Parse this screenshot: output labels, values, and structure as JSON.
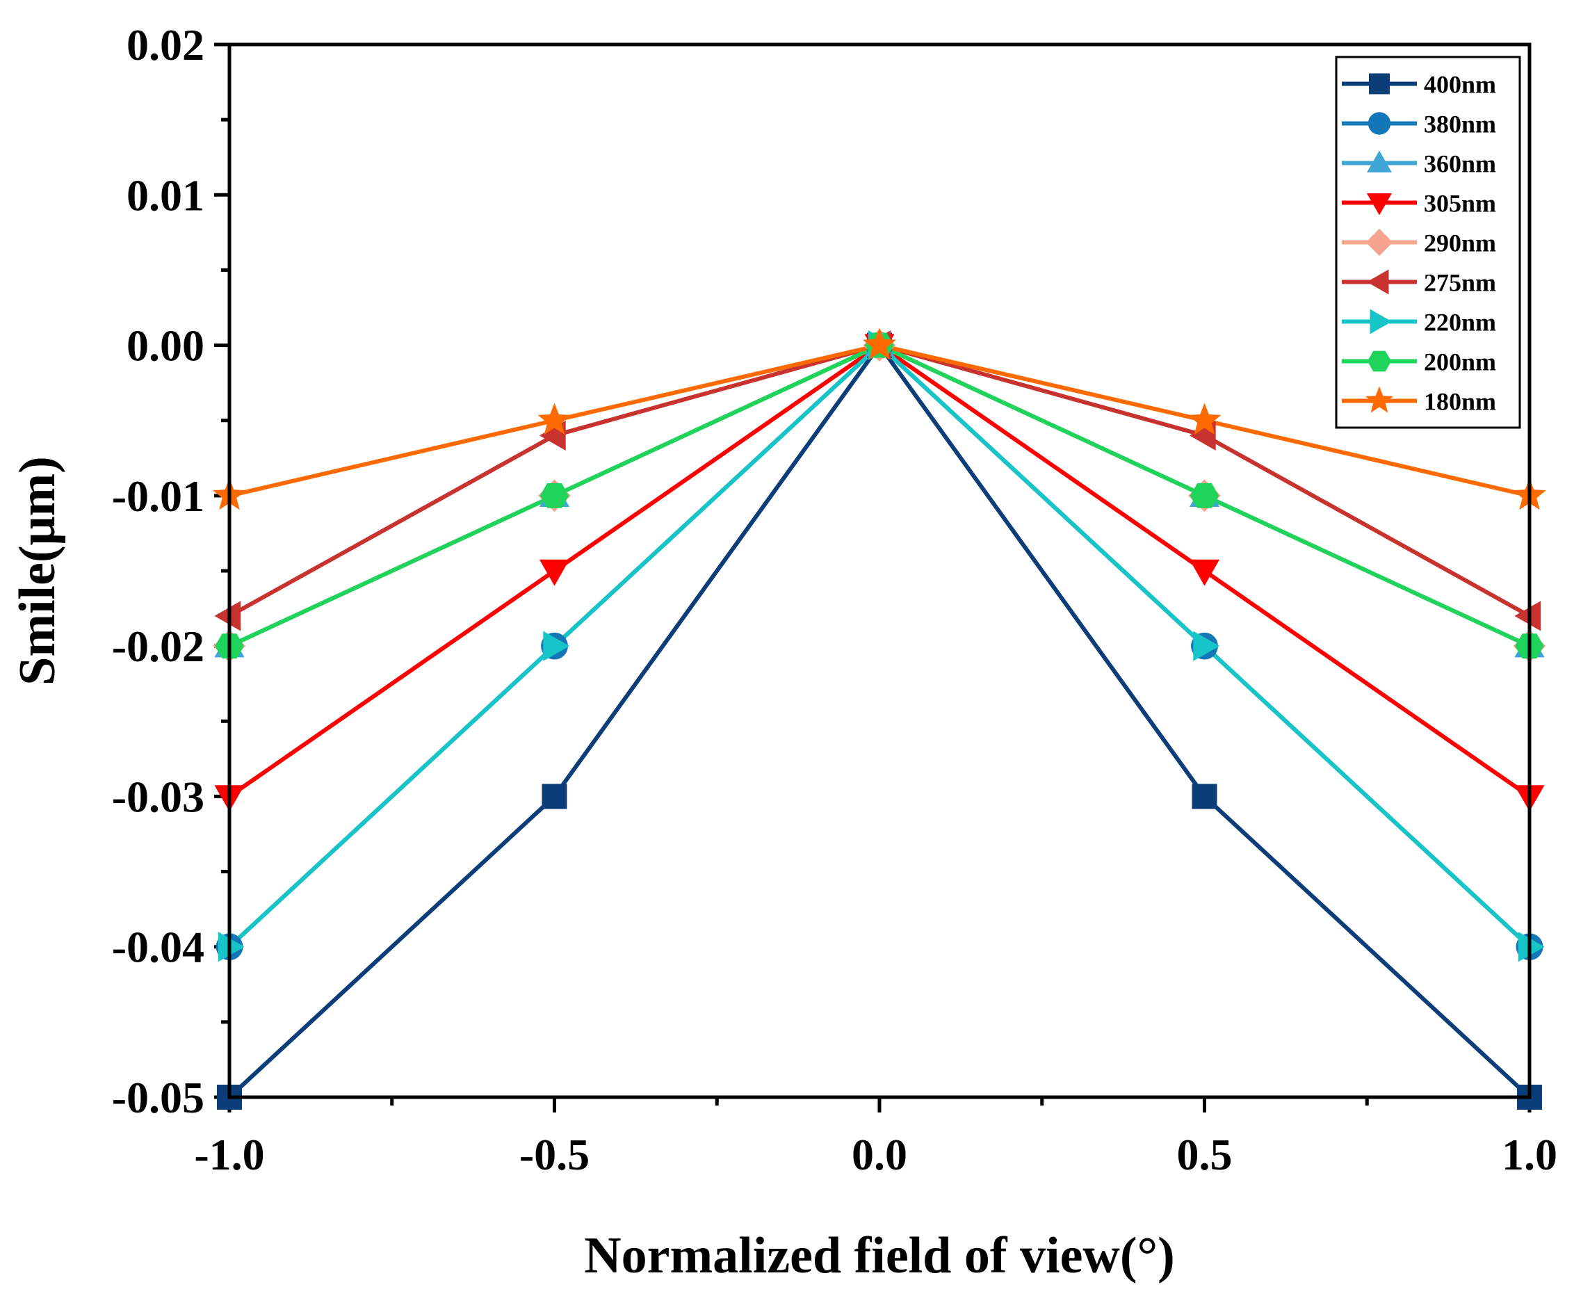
{
  "chart_data": {
    "type": "line",
    "title": "",
    "xlabel": "Normalized field of view(°)",
    "ylabel": "Smile(μm)",
    "xlim": [
      -1.0,
      1.0
    ],
    "ylim": [
      -0.05,
      0.02
    ],
    "x_ticks": [
      "-1.0",
      "-0.5",
      "0.0",
      "0.5",
      "1.0"
    ],
    "y_ticks": [
      "-0.05",
      "-0.04",
      "-0.03",
      "-0.02",
      "-0.01",
      "0.00",
      "0.01",
      "0.02"
    ],
    "grid": false,
    "legend_position": "top-right",
    "x": [
      -1.0,
      -0.5,
      0.0,
      0.5,
      1.0
    ],
    "series": [
      {
        "name": "400nm",
        "color": "#0b3d78",
        "marker": "square",
        "values": [
          -0.05,
          -0.03,
          0.0,
          -0.03,
          -0.05
        ]
      },
      {
        "name": "380nm",
        "color": "#1478b8",
        "marker": "circle",
        "values": [
          -0.04,
          -0.02,
          0.0,
          -0.02,
          -0.04
        ]
      },
      {
        "name": "360nm",
        "color": "#3fa6d6",
        "marker": "triangle-up",
        "values": [
          -0.02,
          -0.01,
          0.0,
          -0.01,
          -0.02
        ]
      },
      {
        "name": "305nm",
        "color": "#ff0000",
        "marker": "triangle-down",
        "values": [
          -0.03,
          -0.015,
          0.0,
          -0.015,
          -0.03
        ]
      },
      {
        "name": "290nm",
        "color": "#f6a48e",
        "marker": "diamond",
        "values": [
          -0.02,
          -0.01,
          0.0,
          -0.01,
          -0.02
        ]
      },
      {
        "name": "275nm",
        "color": "#c8322f",
        "marker": "triangle-left",
        "values": [
          -0.018,
          -0.006,
          0.0,
          -0.006,
          -0.018
        ]
      },
      {
        "name": "220nm",
        "color": "#17c4c8",
        "marker": "triangle-right",
        "values": [
          -0.04,
          -0.02,
          0.0,
          -0.02,
          -0.04
        ]
      },
      {
        "name": "200nm",
        "color": "#1fd45a",
        "marker": "hexagon",
        "values": [
          -0.02,
          -0.01,
          0.0,
          -0.01,
          -0.02
        ]
      },
      {
        "name": "180nm",
        "color": "#ff6a00",
        "marker": "star",
        "values": [
          -0.01,
          -0.005,
          0.0,
          -0.005,
          -0.01
        ]
      }
    ]
  }
}
